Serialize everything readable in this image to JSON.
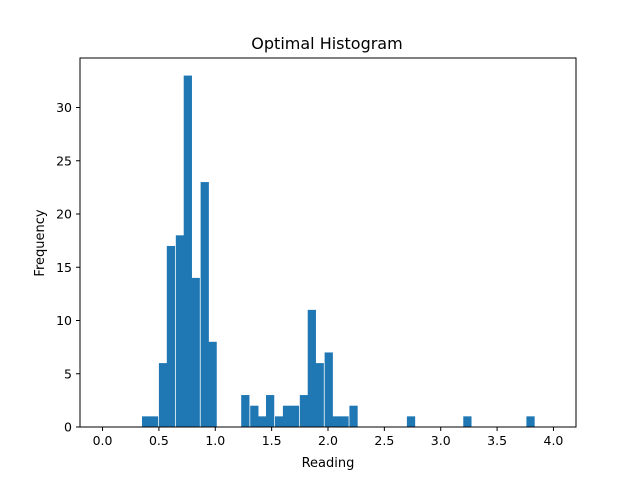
{
  "chart_data": {
    "type": "bar",
    "title": "Optimal Histogram",
    "xlabel": "Reading",
    "ylabel": "Frequency",
    "xlim": [
      -0.2,
      4.2
    ],
    "ylim": [
      0,
      34.65
    ],
    "bin_width": 0.0732,
    "x_ticks": [
      0.0,
      0.5,
      1.0,
      1.5,
      2.0,
      2.5,
      3.0,
      3.5,
      4.0
    ],
    "x_tick_labels": [
      "0.0",
      "0.5",
      "1.0",
      "1.5",
      "2.0",
      "2.5",
      "3.0",
      "3.5",
      "4.0"
    ],
    "y_ticks": [
      0,
      5,
      10,
      15,
      20,
      25,
      30
    ],
    "y_tick_labels": [
      "0",
      "5",
      "10",
      "15",
      "20",
      "25",
      "30"
    ],
    "bars": [
      {
        "x0": 0.35,
        "value": 1
      },
      {
        "x0": 0.42,
        "value": 1
      },
      {
        "x0": 0.5,
        "value": 6
      },
      {
        "x0": 0.57,
        "value": 17
      },
      {
        "x0": 0.65,
        "value": 18
      },
      {
        "x0": 0.72,
        "value": 33
      },
      {
        "x0": 0.79,
        "value": 14
      },
      {
        "x0": 0.87,
        "value": 23
      },
      {
        "x0": 0.94,
        "value": 8
      },
      {
        "x0": 1.01,
        "value": 0
      },
      {
        "x0": 1.09,
        "value": 0
      },
      {
        "x0": 1.16,
        "value": 0
      },
      {
        "x0": 1.23,
        "value": 3
      },
      {
        "x0": 1.31,
        "value": 2
      },
      {
        "x0": 1.38,
        "value": 1
      },
      {
        "x0": 1.45,
        "value": 3
      },
      {
        "x0": 1.53,
        "value": 1
      },
      {
        "x0": 1.6,
        "value": 2
      },
      {
        "x0": 1.67,
        "value": 2
      },
      {
        "x0": 1.75,
        "value": 3
      },
      {
        "x0": 1.82,
        "value": 11
      },
      {
        "x0": 1.89,
        "value": 6
      },
      {
        "x0": 1.97,
        "value": 7
      },
      {
        "x0": 2.04,
        "value": 1
      },
      {
        "x0": 2.11,
        "value": 1
      },
      {
        "x0": 2.19,
        "value": 2
      },
      {
        "x0": 2.7,
        "value": 1
      },
      {
        "x0": 3.2,
        "value": 1
      },
      {
        "x0": 3.76,
        "value": 1
      }
    ],
    "colors": {
      "bar": "#1f77b4"
    },
    "grid": false,
    "legend": "none"
  }
}
